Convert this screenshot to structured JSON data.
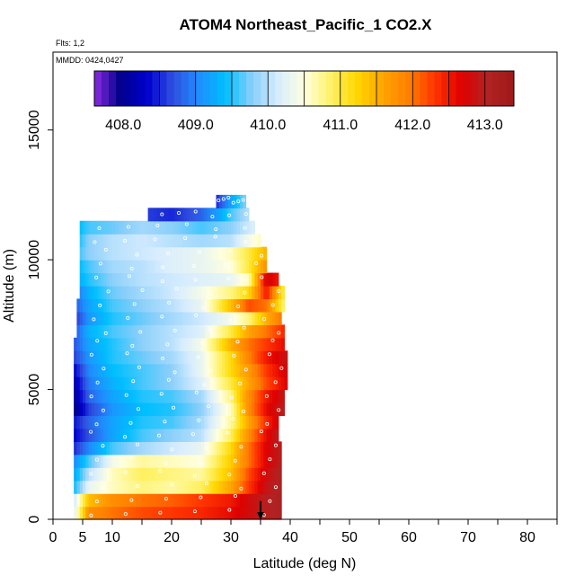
{
  "chart_data": {
    "type": "heatmap",
    "title": "ATOM4 Northeast_Pacific_1 CO2.X",
    "notes": [
      "Flts: 1,2",
      "MMDD: 0424,0427"
    ],
    "xlabel": "Latitude (deg N)",
    "ylabel": "Altitude (m)",
    "xlim": [
      0,
      85
    ],
    "ylim": [
      0,
      18000
    ],
    "x_ticks": [
      0,
      5,
      10,
      20,
      30,
      40,
      50,
      60,
      70,
      80
    ],
    "y_ticks": [
      0,
      5000,
      10000,
      15000
    ],
    "colorbar": {
      "min": 407.6,
      "max": 413.4,
      "tick_values": [
        408.0,
        409.0,
        410.0,
        411.0,
        412.0,
        413.0
      ],
      "tick_labels": [
        "408.0",
        "409.0",
        "410.0",
        "411.0",
        "412.0",
        "413.0"
      ],
      "colors": [
        "#8b2be2",
        "#00008b",
        "#0000cd",
        "#2f4fe0",
        "#1e8fff",
        "#00bfff",
        "#87cefa",
        "#d6ecff",
        "#ffffe0",
        "#fff26b",
        "#ffd700",
        "#ffa500",
        "#ff7f00",
        "#ff3300",
        "#e00000",
        "#b22222",
        "#a01818"
      ]
    },
    "altitude_bins": [
      0,
      500,
      1000,
      1500,
      2000,
      2500,
      3000,
      3500,
      4000,
      4500,
      5000,
      5500,
      6000,
      6500,
      7000,
      7500,
      8000,
      8500,
      9000,
      9500,
      10000,
      10500,
      11000,
      11500,
      12000,
      12500
    ],
    "curtain_rows": [
      {
        "alt": 0,
        "lat_start": 3.5,
        "lat_end": 38.5,
        "lat_values": [
          3.5,
          6,
          10,
          15,
          20,
          25,
          30,
          33,
          36,
          38.5
        ],
        "co2": [
          410.2,
          411.8,
          412.0,
          412.2,
          412.3,
          412.4,
          412.6,
          412.8,
          413.0,
          413.1
        ]
      },
      {
        "alt": 500,
        "lat_start": 3.5,
        "lat_end": 38.5,
        "lat_values": [
          3.5,
          6,
          10,
          15,
          20,
          25,
          30,
          33,
          36,
          38.5
        ],
        "co2": [
          410.1,
          411.4,
          411.8,
          412.0,
          412.1,
          412.3,
          412.5,
          412.8,
          413.0,
          413.1
        ]
      },
      {
        "alt": 1000,
        "lat_start": 3.5,
        "lat_end": 38.5,
        "lat_values": [
          3.5,
          6,
          10,
          15,
          20,
          25,
          30,
          33,
          36,
          38.5
        ],
        "co2": [
          409.4,
          410.3,
          410.6,
          410.8,
          410.7,
          410.9,
          411.6,
          412.3,
          412.9,
          413.1
        ]
      },
      {
        "alt": 1500,
        "lat_start": 3.5,
        "lat_end": 38.5,
        "lat_values": [
          3.5,
          6,
          10,
          15,
          20,
          25,
          30,
          33,
          36,
          38.5
        ],
        "co2": [
          409.2,
          410.0,
          410.6,
          410.9,
          410.8,
          410.7,
          411.4,
          412.2,
          412.8,
          413.1
        ]
      },
      {
        "alt": 2000,
        "lat_start": 3.5,
        "lat_end": 38.5,
        "lat_values": [
          3.5,
          6,
          10,
          15,
          20,
          25,
          30,
          33,
          36,
          38.5
        ],
        "co2": [
          409.0,
          409.6,
          410.4,
          410.7,
          410.6,
          410.5,
          411.3,
          412.0,
          412.7,
          413.0
        ]
      },
      {
        "alt": 2500,
        "lat_start": 3.5,
        "lat_end": 38.5,
        "lat_values": [
          3.5,
          6,
          10,
          15,
          20,
          25,
          30,
          33,
          36,
          38.5
        ],
        "co2": [
          408.5,
          409.0,
          409.6,
          409.9,
          410.1,
          410.3,
          411.2,
          412.0,
          412.7,
          413.0
        ]
      },
      {
        "alt": 3000,
        "lat_start": 3.5,
        "lat_end": 38.0,
        "lat_values": [
          3.5,
          6,
          10,
          15,
          20,
          25,
          30,
          33,
          36,
          38.0
        ],
        "co2": [
          408.3,
          408.7,
          409.2,
          409.6,
          409.8,
          410.0,
          410.9,
          411.8,
          412.6,
          413.0
        ]
      },
      {
        "alt": 3500,
        "lat_start": 3.5,
        "lat_end": 38.0,
        "lat_values": [
          3.5,
          6,
          10,
          15,
          20,
          25,
          30,
          33,
          36,
          38.0
        ],
        "co2": [
          408.4,
          408.8,
          409.2,
          409.5,
          409.6,
          409.9,
          410.7,
          411.6,
          412.4,
          412.8
        ]
      },
      {
        "alt": 4000,
        "lat_start": 3.5,
        "lat_end": 39.0,
        "lat_values": [
          3.5,
          6,
          10,
          15,
          20,
          25,
          30,
          33,
          36,
          39.0
        ],
        "co2": [
          407.9,
          408.6,
          409.1,
          409.4,
          409.5,
          409.8,
          410.6,
          411.8,
          412.6,
          413.0
        ]
      },
      {
        "alt": 4500,
        "lat_start": 3.5,
        "lat_end": 39.0,
        "lat_values": [
          3.5,
          6,
          10,
          15,
          20,
          25,
          30,
          33,
          36,
          39.0
        ],
        "co2": [
          408.0,
          408.8,
          409.2,
          409.5,
          409.6,
          409.9,
          410.8,
          411.8,
          412.5,
          412.9
        ]
      },
      {
        "alt": 5000,
        "lat_start": 3.5,
        "lat_end": 39.5,
        "lat_values": [
          3.5,
          6,
          10,
          15,
          20,
          25,
          30,
          33,
          36,
          39.5
        ],
        "co2": [
          408.1,
          408.9,
          409.3,
          409.6,
          409.8,
          410.2,
          411.0,
          411.6,
          412.2,
          412.7
        ]
      },
      {
        "alt": 5500,
        "lat_start": 3.5,
        "lat_end": 39.5,
        "lat_values": [
          3.5,
          6,
          10,
          15,
          20,
          25,
          30,
          33,
          36,
          39.5
        ],
        "co2": [
          408.3,
          409.0,
          409.4,
          409.6,
          409.8,
          410.3,
          411.2,
          411.7,
          412.3,
          412.8
        ]
      },
      {
        "alt": 6000,
        "lat_start": 3.5,
        "lat_end": 39.5,
        "lat_values": [
          3.5,
          6,
          10,
          15,
          20,
          25,
          30,
          33,
          36,
          39.5
        ],
        "co2": [
          408.6,
          409.1,
          409.5,
          409.7,
          409.9,
          410.3,
          411.2,
          411.9,
          412.5,
          412.9
        ]
      },
      {
        "alt": 6500,
        "lat_start": 3.5,
        "lat_end": 39.0,
        "lat_values": [
          3.5,
          6,
          10,
          15,
          20,
          25,
          30,
          33,
          36,
          39.0
        ],
        "co2": [
          408.7,
          409.2,
          409.5,
          409.8,
          410.0,
          410.4,
          411.5,
          412.0,
          412.3,
          412.6
        ]
      },
      {
        "alt": 7000,
        "lat_start": 4.0,
        "lat_end": 39.0,
        "lat_values": [
          4.0,
          6,
          10,
          15,
          20,
          25,
          30,
          33,
          36,
          39.0
        ],
        "co2": [
          408.8,
          409.3,
          409.6,
          409.8,
          410.0,
          410.2,
          411.0,
          411.6,
          412.0,
          412.4
        ]
      },
      {
        "alt": 7500,
        "lat_start": 4.0,
        "lat_end": 38.5,
        "lat_values": [
          4.0,
          6,
          10,
          15,
          20,
          25,
          30,
          33,
          36,
          38.5
        ],
        "co2": [
          408.6,
          409.1,
          409.5,
          409.7,
          409.9,
          410.1,
          410.4,
          410.8,
          411.5,
          412.0
        ]
      },
      {
        "alt": 8000,
        "lat_start": 4.0,
        "lat_end": 39.0,
        "lat_values": [
          4.0,
          6,
          10,
          15,
          20,
          25,
          30,
          33,
          36,
          39.0
        ],
        "co2": [
          408.8,
          409.2,
          409.6,
          409.8,
          410.0,
          410.3,
          411.4,
          412.2,
          412.0,
          410.8
        ]
      },
      {
        "alt": 8500,
        "lat_start": 4.5,
        "lat_end": 39.0,
        "lat_values": [
          4.5,
          6,
          10,
          15,
          20,
          25,
          30,
          33,
          36,
          39.0
        ],
        "co2": [
          409.0,
          409.3,
          409.7,
          409.9,
          410.1,
          410.4,
          410.8,
          411.2,
          412.5,
          410.9
        ]
      },
      {
        "alt": 9000,
        "lat_start": 4.5,
        "lat_end": 38.0,
        "lat_values": [
          4.5,
          6,
          10,
          15,
          20,
          25,
          30,
          33,
          36,
          38.0
        ],
        "co2": [
          409.3,
          409.5,
          409.8,
          410.0,
          410.1,
          410.2,
          410.3,
          410.6,
          412.8,
          412.5
        ]
      },
      {
        "alt": 9500,
        "lat_start": 4.5,
        "lat_end": 36.0,
        "lat_values": [
          4.5,
          6,
          10,
          15,
          20,
          25,
          30,
          33,
          36.0
        ],
        "co2": [
          409.4,
          409.6,
          409.9,
          410.0,
          410.2,
          410.3,
          410.5,
          411.0,
          411.8
        ]
      },
      {
        "alt": 10000,
        "lat_start": 4.5,
        "lat_end": 36.0,
        "lat_values": [
          4.5,
          6,
          10,
          15,
          20,
          25,
          30,
          33,
          36.0
        ],
        "co2": [
          409.6,
          409.8,
          410.0,
          410.1,
          410.2,
          410.3,
          410.6,
          411.0,
          411.5
        ]
      },
      {
        "alt": 10500,
        "lat_start": 4.5,
        "lat_end": 35.0,
        "lat_values": [
          4.5,
          6,
          10,
          15,
          20,
          25,
          30,
          33,
          35.0
        ],
        "co2": [
          409.5,
          409.8,
          410.0,
          410.1,
          410.0,
          409.9,
          410.0,
          410.4,
          410.6
        ]
      },
      {
        "alt": 11000,
        "lat_start": 4.5,
        "lat_end": 34.0,
        "lat_values": [
          4.5,
          6,
          10,
          15,
          20,
          25,
          30,
          34.0
        ],
        "co2": [
          409.4,
          409.6,
          409.7,
          409.9,
          409.8,
          409.6,
          409.8,
          410.2
        ]
      },
      {
        "alt": 11500,
        "lat_start": 16.0,
        "lat_end": 33.0,
        "lat_values": [
          16,
          20,
          25,
          28,
          30,
          33.0
        ],
        "co2": [
          408.6,
          408.5,
          408.8,
          409.2,
          409.6,
          410.0
        ]
      },
      {
        "alt": 12000,
        "lat_start": 27.5,
        "lat_end": 32.5,
        "lat_values": [
          27.5,
          30,
          32.5
        ],
        "co2": [
          408.5,
          409.2,
          409.8
        ]
      }
    ],
    "marker": {
      "type": "arrow-down",
      "lat": 35,
      "alt_top": 700,
      "alt_bottom": 0
    }
  }
}
